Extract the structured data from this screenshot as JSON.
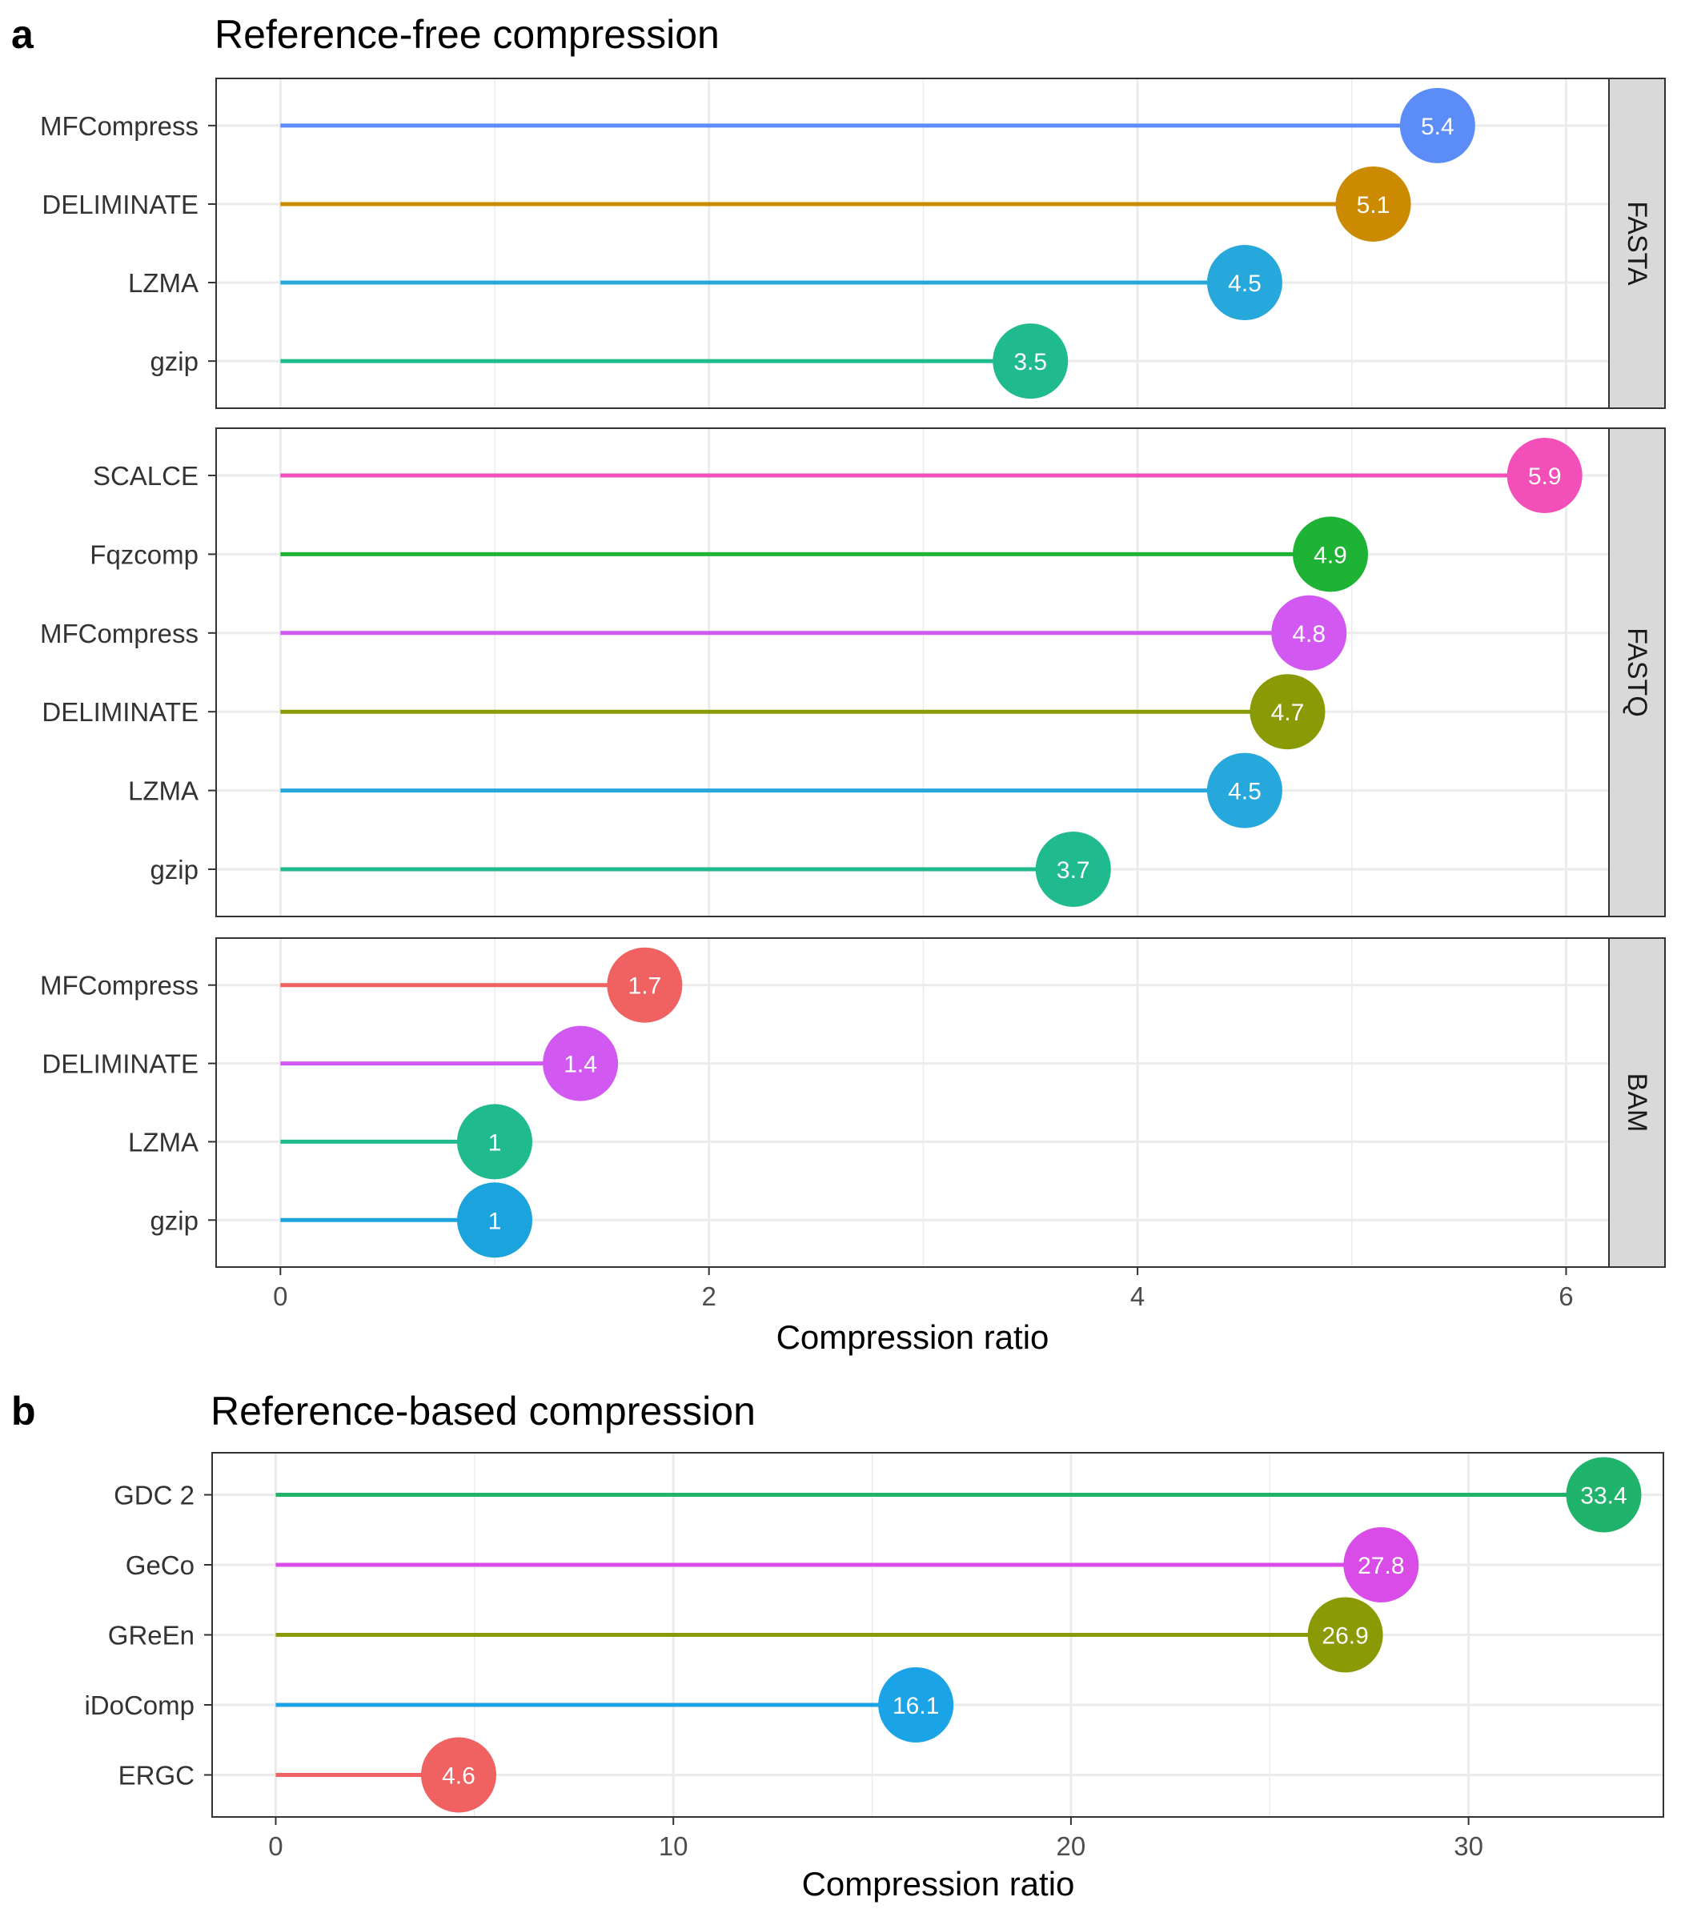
{
  "colors": {
    "grid": "#ebebeb",
    "panel_border": "#333333",
    "strip_fill": "#d9d9d9"
  },
  "panel_a": {
    "letter": "a",
    "title": "Reference-free compression"
  },
  "panel_b": {
    "letter": "b",
    "title": "Reference-based compression"
  },
  "chart_data": [
    {
      "type": "lollipop",
      "title": "Reference-free compression",
      "xlabel": "Compression ratio",
      "ylabel": "",
      "xlim": [
        -0.3,
        6.2
      ],
      "xticks": [
        0,
        2,
        4,
        6
      ],
      "grid": true,
      "facets": [
        {
          "name": "FASTA",
          "categories": [
            "MFCompress",
            "DELIMINATE",
            "LZMA",
            "gzip"
          ],
          "values": [
            5.4,
            5.1,
            4.5,
            3.5
          ],
          "labels": [
            "5.4",
            "5.1",
            "4.5",
            "3.5"
          ],
          "colors": [
            "#5b8cf7",
            "#cc8a00",
            "#26a8dc",
            "#1fbb8f"
          ]
        },
        {
          "name": "FASTQ",
          "categories": [
            "SCALCE",
            "Fqzcomp",
            "MFCompress",
            "DELIMINATE",
            "LZMA",
            "gzip"
          ],
          "values": [
            5.9,
            4.9,
            4.8,
            4.7,
            4.5,
            3.7
          ],
          "labels": [
            "5.9",
            "4.9",
            "4.8",
            "4.7",
            "4.5",
            "3.7"
          ],
          "colors": [
            "#f24fb8",
            "#1fb336",
            "#d258f2",
            "#8a9a05",
            "#26a8dc",
            "#1fbb8f"
          ]
        },
        {
          "name": "BAM",
          "categories": [
            "MFCompress",
            "DELIMINATE",
            "LZMA",
            "gzip"
          ],
          "values": [
            1.7,
            1.4,
            1,
            1
          ],
          "labels": [
            "1.7",
            "1.4",
            "1",
            "1"
          ],
          "colors": [
            "#f06161",
            "#d258f2",
            "#1fbb8f",
            "#1aa3dc"
          ]
        }
      ]
    },
    {
      "type": "lollipop",
      "title": "Reference-based compression",
      "xlabel": "Compression ratio",
      "ylabel": "",
      "xlim": [
        -1.6,
        34.9
      ],
      "xticks": [
        0,
        10,
        20,
        30
      ],
      "grid": true,
      "categories": [
        "GDC 2",
        "GeCo",
        "GReEn",
        "iDoComp",
        "ERGC"
      ],
      "values": [
        33.4,
        27.8,
        26.9,
        16.1,
        4.6
      ],
      "labels": [
        "33.4",
        "27.8",
        "26.9",
        "16.1",
        "4.6"
      ],
      "colors": [
        "#1fb36b",
        "#d94ce8",
        "#8a9a05",
        "#1aa3e6",
        "#f06161"
      ]
    }
  ]
}
